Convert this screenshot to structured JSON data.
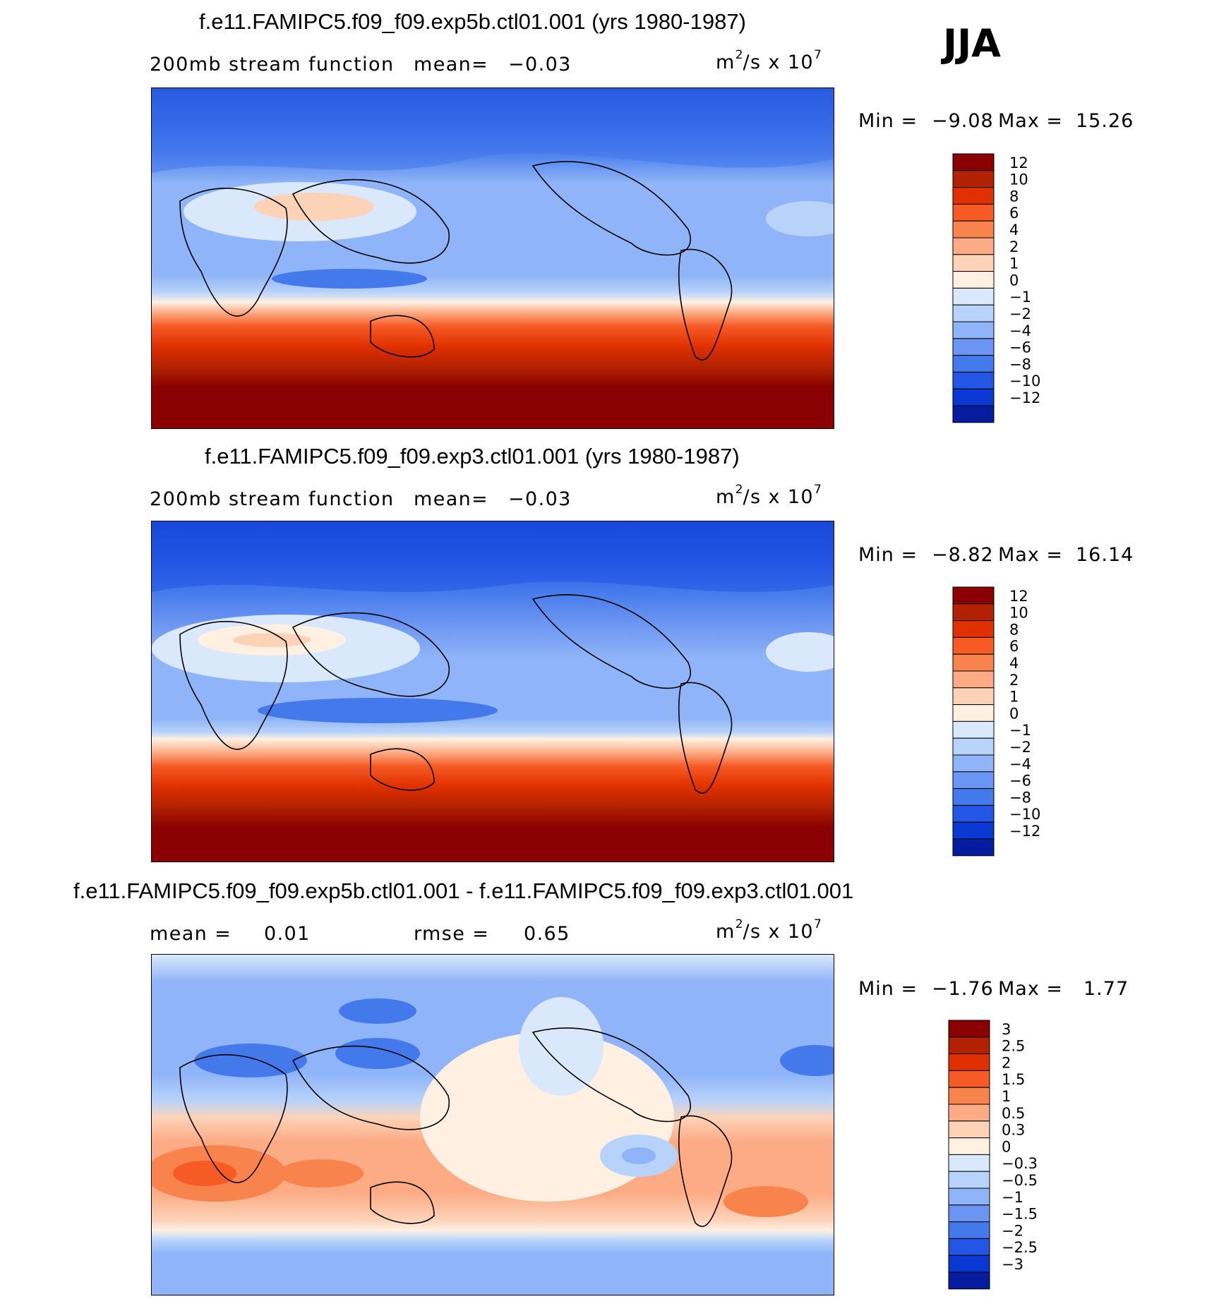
{
  "season": "JJA",
  "units_base": "m",
  "units_exp1": "2",
  "units_mid": "/s x 10",
  "units_exp2": "7",
  "panels": [
    {
      "title": "f.e11.FAMIPC5.f09_f09.exp5b.ctl01.001 (yrs 1980-1987)",
      "left_label": "200mb stream function",
      "right_label": "mean=",
      "right_value": "−0.03",
      "min_label": "Min =",
      "min_value": "−9.08",
      "max_label": "Max =",
      "max_value": "15.26",
      "colorbar": {
        "colors": [
          "#8b0000",
          "#b22200",
          "#e03000",
          "#f65a25",
          "#f9834d",
          "#fcab84",
          "#fdd3b8",
          "#fff0e2",
          "#d9e9fb",
          "#b8d3fa",
          "#8fb4f7",
          "#6b95f2",
          "#4479ec",
          "#2356e4",
          "#0a38d2",
          "#031d9e"
        ],
        "labels": [
          "12",
          "10",
          "8",
          "6",
          "4",
          "2",
          "1",
          "0",
          "−1",
          "−2",
          "−4",
          "−6",
          "−8",
          "−10",
          "−12"
        ]
      }
    },
    {
      "title": "f.e11.FAMIPC5.f09_f09.exp3.ctl01.001 (yrs 1980-1987)",
      "left_label": "200mb stream function",
      "right_label": "mean=",
      "right_value": "−0.03",
      "min_label": "Min =",
      "min_value": "−8.82",
      "max_label": "Max =",
      "max_value": "16.14",
      "colorbar": {
        "colors": [
          "#8b0000",
          "#b22200",
          "#e03000",
          "#f65a25",
          "#f9834d",
          "#fcab84",
          "#fdd3b8",
          "#fff0e2",
          "#d9e9fb",
          "#b8d3fa",
          "#8fb4f7",
          "#6b95f2",
          "#4479ec",
          "#2356e4",
          "#0a38d2",
          "#031d9e"
        ],
        "labels": [
          "12",
          "10",
          "8",
          "6",
          "4",
          "2",
          "1",
          "0",
          "−1",
          "−2",
          "−4",
          "−6",
          "−8",
          "−10",
          "−12"
        ]
      }
    },
    {
      "title": "f.e11.FAMIPC5.f09_f09.exp5b.ctl01.001 - f.e11.FAMIPC5.f09_f09.exp3.ctl01.001",
      "left_label": "mean =",
      "left_value": "0.01",
      "right_label": "rmse =",
      "right_value": "0.65",
      "min_label": "Min =",
      "min_value": "−1.76",
      "max_label": "Max =",
      "max_value": "1.77",
      "colorbar": {
        "colors": [
          "#8b0000",
          "#b22200",
          "#e03000",
          "#f65a25",
          "#f9834d",
          "#fcab84",
          "#fdd3b8",
          "#fff0e2",
          "#d9e9fb",
          "#b8d3fa",
          "#8fb4f7",
          "#6b95f2",
          "#4479ec",
          "#2356e4",
          "#0a38d2",
          "#031d9e"
        ],
        "labels": [
          "3",
          "2.5",
          "2",
          "1.5",
          "1",
          "0.5",
          "0.3",
          "0",
          "−0.3",
          "−0.5",
          "−1",
          "−1.5",
          "−2",
          "−2.5",
          "−3"
        ]
      }
    }
  ]
}
